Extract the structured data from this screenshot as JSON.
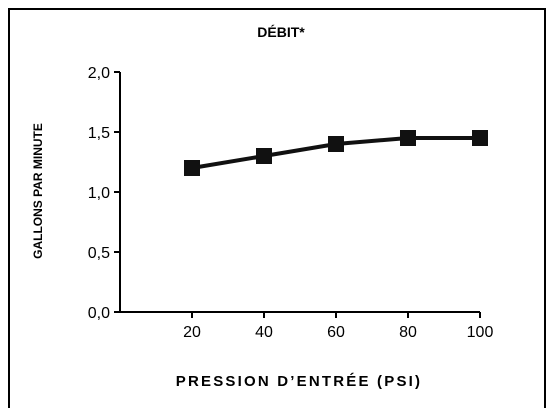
{
  "chart_data": {
    "type": "line",
    "title": "DÉBIT*",
    "xlabel": "PRESSION D’ENTRÉE (PSI)",
    "ylabel": "GALLONS PAR MINUTE",
    "x": [
      20,
      40,
      60,
      80,
      100
    ],
    "x_tick_labels": [
      "20",
      "40",
      "60",
      "80",
      "100"
    ],
    "y_ticks": [
      0.0,
      0.5,
      1.0,
      1.5,
      2.0
    ],
    "y_tick_labels": [
      "0,0",
      "0,5",
      "1,0",
      "1,5",
      "2,0"
    ],
    "xlim": [
      0,
      100
    ],
    "ylim": [
      0,
      2
    ],
    "grid": false,
    "series": [
      {
        "values": [
          1.2,
          1.3,
          1.4,
          1.45,
          1.45
        ],
        "marker": "square",
        "color": "#111111"
      }
    ]
  }
}
